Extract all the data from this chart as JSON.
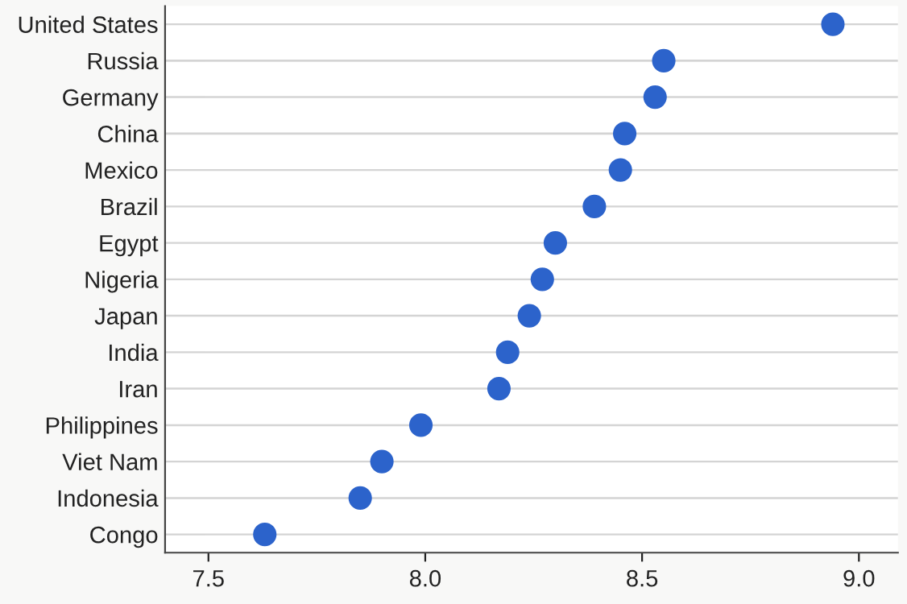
{
  "chart_data": {
    "type": "scatter",
    "orientation": "horizontal",
    "categories": [
      "United States",
      "Russia",
      "Germany",
      "China",
      "Mexico",
      "Brazil",
      "Egypt",
      "Nigeria",
      "Japan",
      "India",
      "Iran",
      "Philippines",
      "Viet Nam",
      "Indonesia",
      "Congo"
    ],
    "values": [
      8.94,
      8.55,
      8.53,
      8.46,
      8.45,
      8.39,
      8.3,
      8.27,
      8.24,
      8.19,
      8.17,
      7.99,
      7.9,
      7.85,
      7.63
    ],
    "color": "#2c63cb",
    "xlim": [
      7.4,
      9.09
    ],
    "xticks": [
      {
        "value": 7.5,
        "label": "7.5"
      },
      {
        "value": 8,
        "label": "8.0"
      },
      {
        "value": 8.5,
        "label": "8.5"
      },
      {
        "value": 9,
        "label": "9.0"
      }
    ],
    "grid": "y",
    "marker": "circle"
  }
}
